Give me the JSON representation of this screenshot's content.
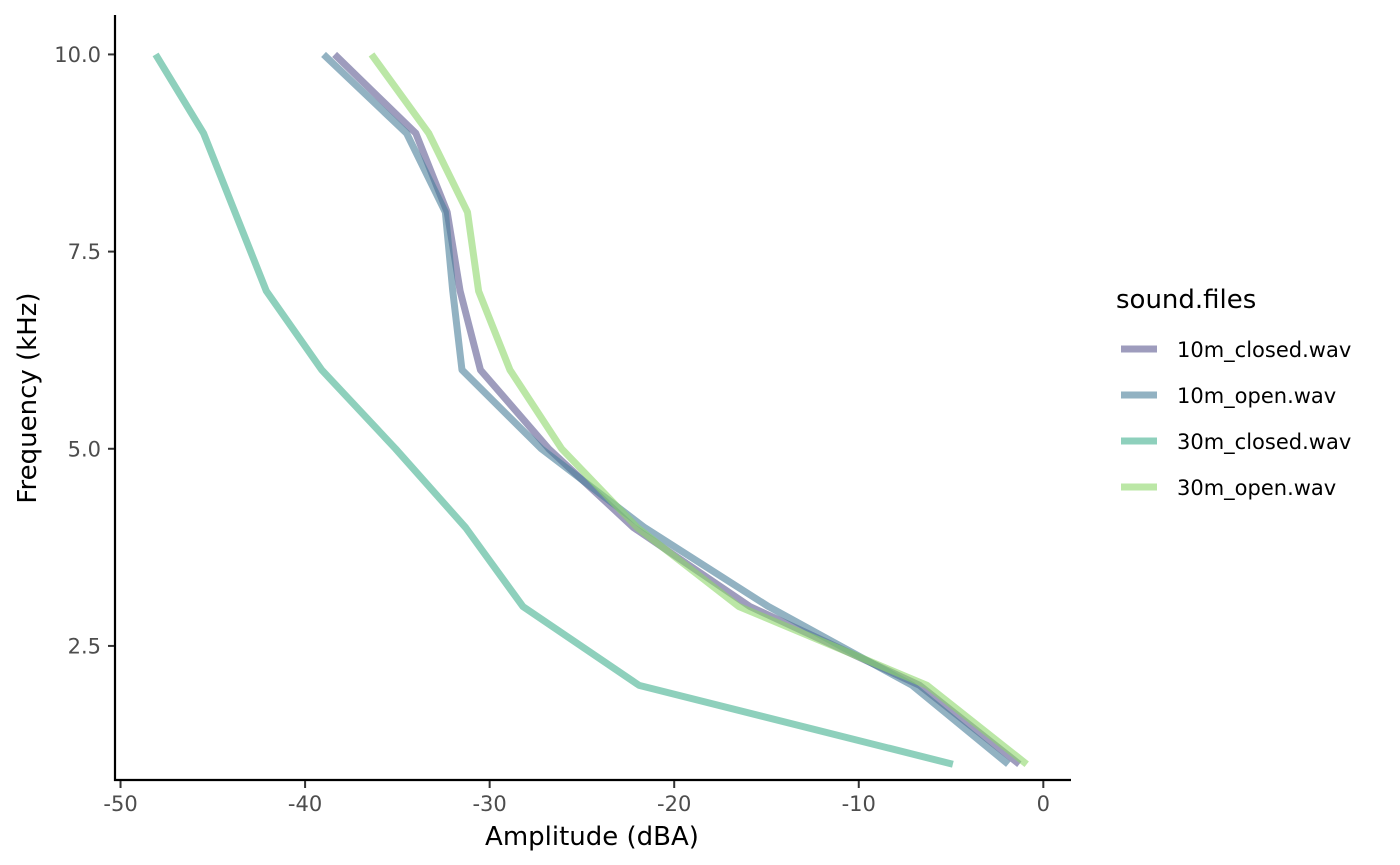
{
  "chart_data": {
    "type": "line",
    "xlabel": "Amplitude (dBA)",
    "ylabel": "Frequency (kHz)",
    "xlim": [
      -50.3,
      1.5
    ],
    "ylim": [
      0.8,
      10.5
    ],
    "x_ticks": [
      -50,
      -40,
      -30,
      -20,
      -10,
      0
    ],
    "x_tick_labels": [
      "-50",
      "-40",
      "-30",
      "-20",
      "-10",
      "0"
    ],
    "y_ticks": [
      2.5,
      5.0,
      7.5,
      10.0
    ],
    "y_tick_labels": [
      "2.5",
      "5.0",
      "7.5",
      "10.0"
    ],
    "grid": false,
    "legend": {
      "title": "sound.files",
      "position": "right"
    },
    "series": [
      {
        "name": "10m_closed.wav",
        "color": "#5e5a91",
        "points": [
          [
            -1.3,
            1
          ],
          [
            -6.7,
            2
          ],
          [
            -15.9,
            3
          ],
          [
            -22.2,
            4
          ],
          [
            -26.8,
            5
          ],
          [
            -30.5,
            6
          ],
          [
            -31.6,
            7
          ],
          [
            -32.3,
            8
          ],
          [
            -34.0,
            9
          ],
          [
            -38.4,
            10
          ]
        ]
      },
      {
        "name": "10m_open.wav",
        "color": "#4a7f99",
        "points": [
          [
            -1.9,
            1
          ],
          [
            -7.1,
            2
          ],
          [
            -14.9,
            3
          ],
          [
            -21.6,
            4
          ],
          [
            -27.2,
            5
          ],
          [
            -31.5,
            6
          ],
          [
            -32.0,
            7
          ],
          [
            -32.4,
            8
          ],
          [
            -34.5,
            9
          ],
          [
            -39.0,
            10
          ]
        ]
      },
      {
        "name": "30m_closed.wav",
        "color": "#42b08f",
        "points": [
          [
            -4.9,
            1
          ],
          [
            -21.9,
            2
          ],
          [
            -28.2,
            3
          ],
          [
            -31.3,
            4
          ],
          [
            -35.1,
            5
          ],
          [
            -39.1,
            6
          ],
          [
            -42.1,
            7
          ],
          [
            -43.8,
            8
          ],
          [
            -45.5,
            9
          ],
          [
            -48.1,
            10
          ]
        ]
      },
      {
        "name": "30m_open.wav",
        "color": "#8dd76b",
        "points": [
          [
            -0.9,
            1
          ],
          [
            -6.3,
            2
          ],
          [
            -16.5,
            3
          ],
          [
            -22.0,
            4
          ],
          [
            -26.1,
            5
          ],
          [
            -28.9,
            6
          ],
          [
            -30.6,
            7
          ],
          [
            -31.2,
            8
          ],
          [
            -33.3,
            9
          ],
          [
            -36.4,
            10
          ]
        ]
      }
    ]
  }
}
